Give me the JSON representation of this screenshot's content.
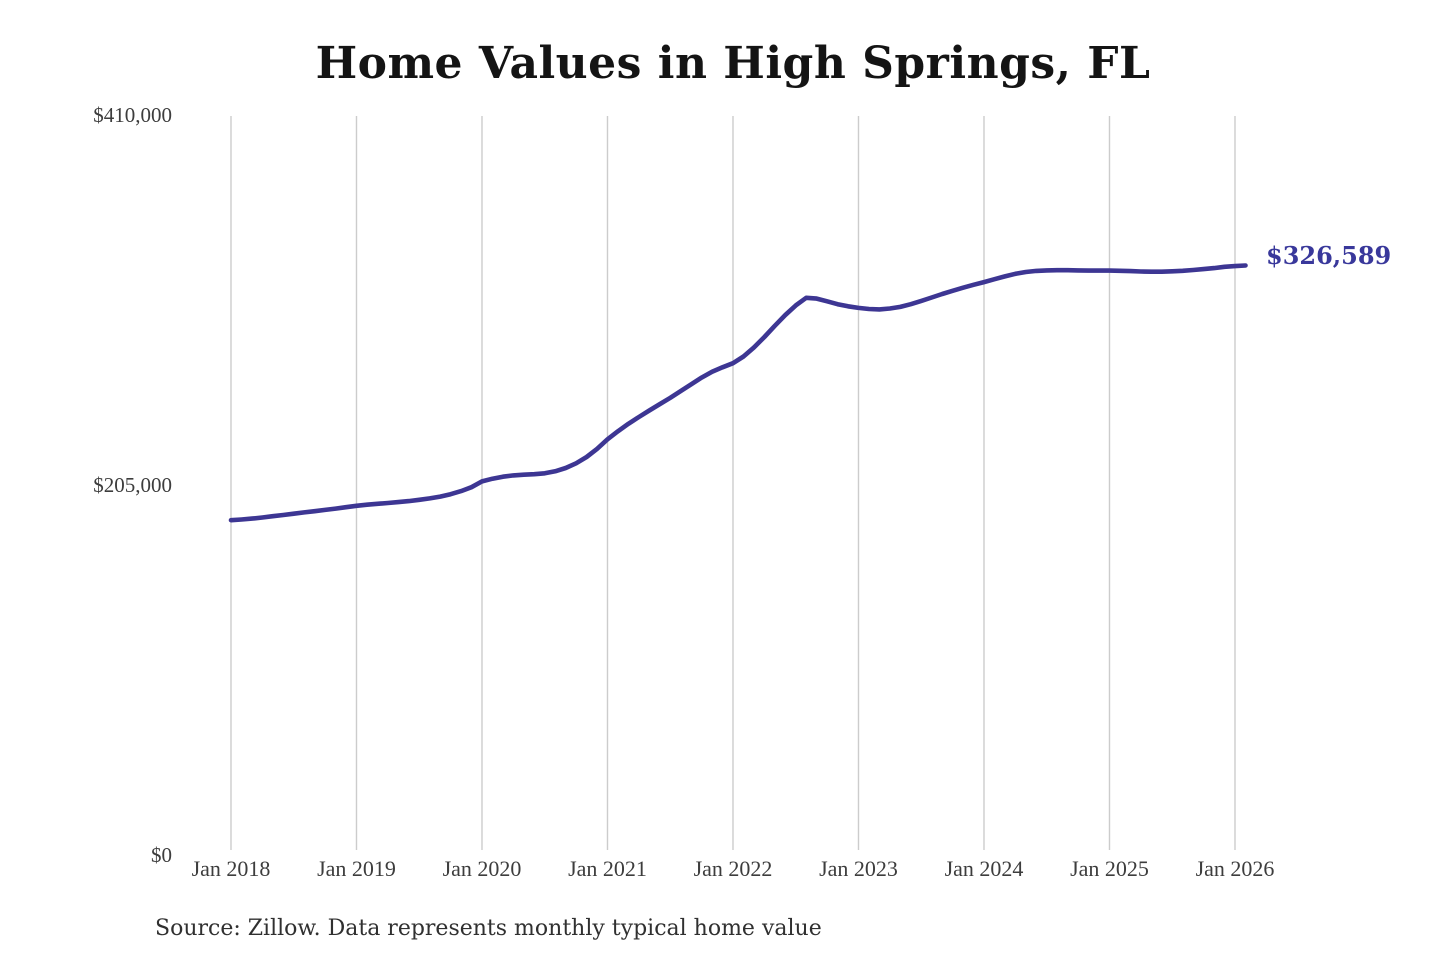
{
  "title": "Home Values in High Springs, FL",
  "source_note": "Source: Zillow. Data represents monthly typical home value",
  "colors": {
    "line": "#3d3693",
    "end_label": "#39389b",
    "grid": "#cccccc",
    "title": "#141414",
    "axis_label": "#3d3d3d",
    "source": "#303030",
    "background": "#ffffff"
  },
  "chart_data": {
    "type": "line",
    "title": "Home Values in High Springs, FL",
    "xlabel": "",
    "ylabel": "",
    "ylim": [
      0,
      410000
    ],
    "grid": "vertical-only",
    "legend": "none",
    "end_label": "$326,589",
    "end_value": 326589,
    "yticks": [
      {
        "value": 0,
        "label": "$0"
      },
      {
        "value": 205000,
        "label": "$205,000"
      },
      {
        "value": 410000,
        "label": "$410,000"
      }
    ],
    "xticks": [
      "Jan 2018",
      "Jan 2019",
      "Jan 2020",
      "Jan 2021",
      "Jan 2022",
      "Jan 2023",
      "Jan 2024",
      "Jan 2025",
      "Jan 2026"
    ],
    "series": [
      {
        "name": "Monthly typical home value",
        "months": [
          "2018-01",
          "2018-02",
          "2018-03",
          "2018-04",
          "2018-05",
          "2018-06",
          "2018-07",
          "2018-08",
          "2018-09",
          "2018-10",
          "2018-11",
          "2018-12",
          "2019-01",
          "2019-02",
          "2019-03",
          "2019-04",
          "2019-05",
          "2019-06",
          "2019-07",
          "2019-08",
          "2019-09",
          "2019-10",
          "2019-11",
          "2019-12",
          "2020-01",
          "2020-02",
          "2020-03",
          "2020-04",
          "2020-05",
          "2020-06",
          "2020-07",
          "2020-08",
          "2020-09",
          "2020-10",
          "2020-11",
          "2020-12",
          "2021-01",
          "2021-02",
          "2021-03",
          "2021-04",
          "2021-05",
          "2021-06",
          "2021-07",
          "2021-08",
          "2021-09",
          "2021-10",
          "2021-11",
          "2021-12",
          "2022-01",
          "2022-02",
          "2022-03",
          "2022-04",
          "2022-05",
          "2022-06",
          "2022-07",
          "2022-08",
          "2022-09",
          "2022-10",
          "2022-11",
          "2022-12",
          "2023-01",
          "2023-02",
          "2023-03",
          "2023-04",
          "2023-05",
          "2023-06",
          "2023-07",
          "2023-08",
          "2023-09",
          "2023-10",
          "2023-11",
          "2023-12",
          "2024-01",
          "2024-02",
          "2024-03",
          "2024-04",
          "2024-05",
          "2024-06",
          "2024-07",
          "2024-08",
          "2024-09",
          "2024-10",
          "2024-11",
          "2024-12",
          "2025-01",
          "2025-02",
          "2025-03",
          "2025-04",
          "2025-05",
          "2025-06",
          "2025-07",
          "2025-08",
          "2025-09",
          "2025-10",
          "2025-11",
          "2025-12",
          "2026-01",
          "2026-02"
        ],
        "values": [
          185500,
          185900,
          186400,
          187000,
          187700,
          188400,
          189100,
          189800,
          190500,
          191200,
          191900,
          192700,
          193500,
          194100,
          194600,
          195000,
          195500,
          196100,
          196800,
          197600,
          198600,
          199900,
          201600,
          203800,
          207000,
          208500,
          209600,
          210300,
          210700,
          211000,
          211500,
          212600,
          214400,
          217000,
          220500,
          225000,
          230300,
          234800,
          238900,
          242700,
          246300,
          249800,
          253300,
          257000,
          260800,
          264500,
          267800,
          270200,
          272500,
          276200,
          281200,
          287000,
          293200,
          299200,
          304500,
          308700,
          308300,
          306800,
          305200,
          304000,
          303100,
          302500,
          302300,
          302800,
          303700,
          305200,
          307000,
          308900,
          310800,
          312600,
          314300,
          315900,
          317400,
          319000,
          320600,
          322000,
          323000,
          323600,
          323900,
          324000,
          324000,
          323900,
          323800,
          323800,
          323800,
          323700,
          323500,
          323300,
          323200,
          323200,
          323400,
          323700,
          324100,
          324600,
          325200,
          325900,
          326300,
          326589
        ]
      }
    ]
  }
}
